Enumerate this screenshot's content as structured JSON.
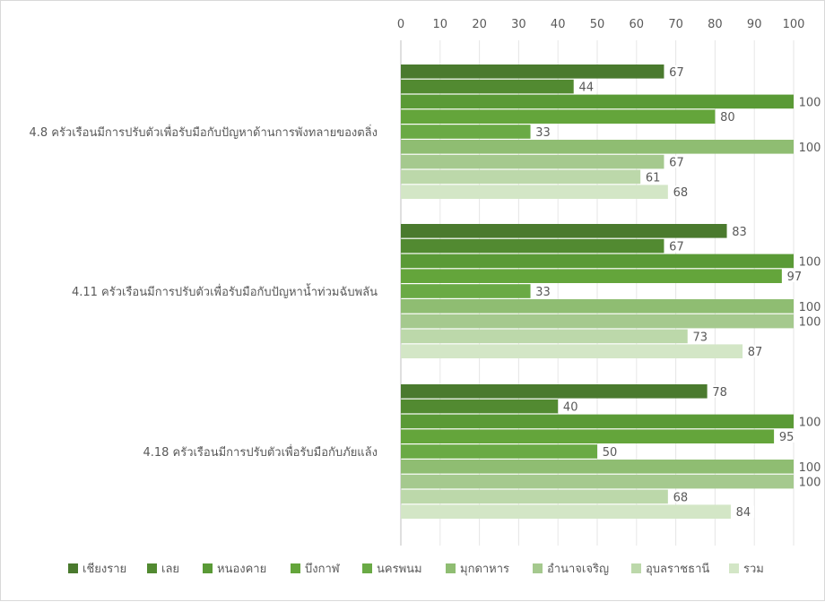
{
  "chart_data": {
    "type": "bar",
    "orientation": "horizontal",
    "categories": [
      "4.8 ครัวเรือนมีการปรับตัวเพื่อรับมือกับปัญหาด้านการพังทลายของตลิ่ง",
      "4.11 ครัวเรือนมีการปรับตัวเพื่อรับมือกับปัญหาน้ำท่วมฉับพลัน",
      "4.18 ครัวเรือนมีการปรับตัวเพื่อรับมือกับภัยแล้ง"
    ],
    "series": [
      {
        "name": "เชียงราย",
        "color": "#4a7a2e",
        "values": [
          67,
          83,
          78
        ]
      },
      {
        "name": "เลย",
        "color": "#528a31",
        "values": [
          44,
          67,
          40
        ]
      },
      {
        "name": "หนองคาย",
        "color": "#5a9a36",
        "values": [
          100,
          100,
          100
        ]
      },
      {
        "name": "บึงกาฬ",
        "color": "#64a53b",
        "values": [
          80,
          97,
          95
        ]
      },
      {
        "name": "นครพนม",
        "color": "#6aaa45",
        "values": [
          33,
          33,
          50
        ]
      },
      {
        "name": "มุกดาหาร",
        "color": "#8fbd72",
        "values": [
          100,
          100,
          100
        ]
      },
      {
        "name": "อำนาจเจริญ",
        "color": "#a5c98e",
        "values": [
          67,
          100,
          100
        ]
      },
      {
        "name": "อุบลราชธานี",
        "color": "#bcd8aa",
        "values": [
          61,
          73,
          68
        ]
      },
      {
        "name": "รวม",
        "color": "#d3e6c6",
        "values": [
          68,
          87,
          84
        ]
      }
    ],
    "xlim": [
      0,
      100
    ],
    "x_ticks": [
      "0",
      "10",
      "20",
      "30",
      "40",
      "50",
      "60",
      "70",
      "80",
      "90",
      "100"
    ],
    "axis_position": "top",
    "grid": true,
    "legend_position": "bottom",
    "data_labels": true
  }
}
